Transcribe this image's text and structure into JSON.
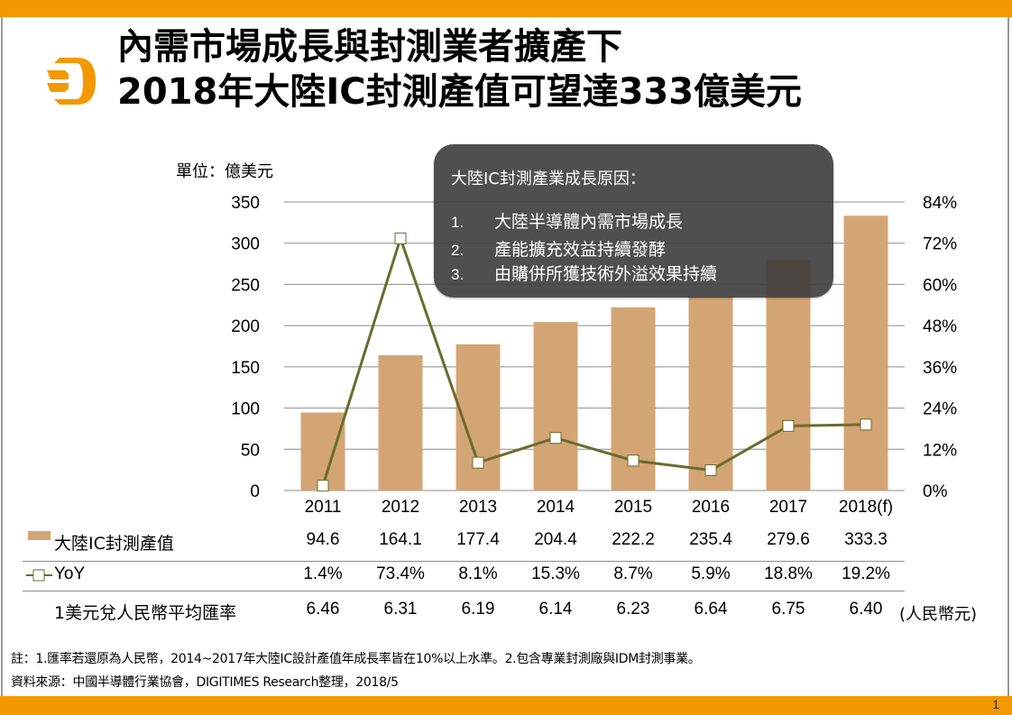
{
  "header": {
    "title_line1": "內需市場成長與封測業者擴產下",
    "title_line2": "2018年大陸IC封測產值可望達333億美元",
    "logo": "digitimes-d-logo",
    "page_number": "1"
  },
  "colors": {
    "brand_orange": "#F39800",
    "bar": "#D4A574",
    "line": "#6B6B2E",
    "callout_bg": "#3C3C3C"
  },
  "unit_label": "單位：億美元",
  "callout": {
    "heading": "大陸IC封測產業成長原因：",
    "items": [
      {
        "num": "1.",
        "text": "大陸半導體內需市場成長"
      },
      {
        "num": "2.",
        "text": "產能擴充效益持續發酵"
      },
      {
        "num": "3.",
        "text": "由購併所獲技術外溢效果持續"
      }
    ]
  },
  "chart_data": {
    "type": "bar",
    "title": "2018年大陸IC封測產值可望達333億美元",
    "categories": [
      "2011",
      "2012",
      "2013",
      "2014",
      "2015",
      "2016",
      "2017",
      "2018(f)"
    ],
    "series": [
      {
        "name": "大陸IC封測產值",
        "type": "bar",
        "axis": "left",
        "values": [
          94.6,
          164.1,
          177.4,
          204.4,
          222.2,
          235.4,
          279.6,
          333.3
        ],
        "labels": [
          "94.6",
          "164.1",
          "177.4",
          "204.4",
          "222.2",
          "235.4",
          "279.6",
          "333.3"
        ]
      },
      {
        "name": "YoY",
        "type": "line",
        "axis": "right",
        "marker": "square",
        "values": [
          1.4,
          73.4,
          8.1,
          15.3,
          8.7,
          5.9,
          18.8,
          19.2
        ],
        "labels": [
          "1.4%",
          "73.4%",
          "8.1%",
          "15.3%",
          "8.7%",
          "5.9%",
          "18.8%",
          "19.2%"
        ]
      }
    ],
    "table_extra_row": {
      "name": "1美元兌人民幣平均匯率",
      "labels": [
        "6.46",
        "6.31",
        "6.19",
        "6.14",
        "6.23",
        "6.64",
        "6.75",
        "6.40"
      ],
      "unit": "(人民幣元)"
    },
    "ylabel": "單位：億美元",
    "ylim": [
      0,
      350
    ],
    "yticks": [
      "0",
      "50",
      "100",
      "150",
      "200",
      "250",
      "300",
      "350"
    ],
    "y2lim": [
      0,
      84
    ],
    "y2ticks": [
      "0%",
      "12%",
      "24%",
      "36%",
      "48%",
      "60%",
      "72%",
      "84%"
    ],
    "grid": true,
    "legend": "bottom-table"
  },
  "notes": {
    "note": "註：1.匯率若還原為人民幣，2014~2017年大陸IC設計產值年成長率皆在10%以上水準。2.包含專業封測廠與IDM封測事業。",
    "source": "資料來源：中國半導體行業協會，DIGITIMES Research整理，2018/5"
  }
}
